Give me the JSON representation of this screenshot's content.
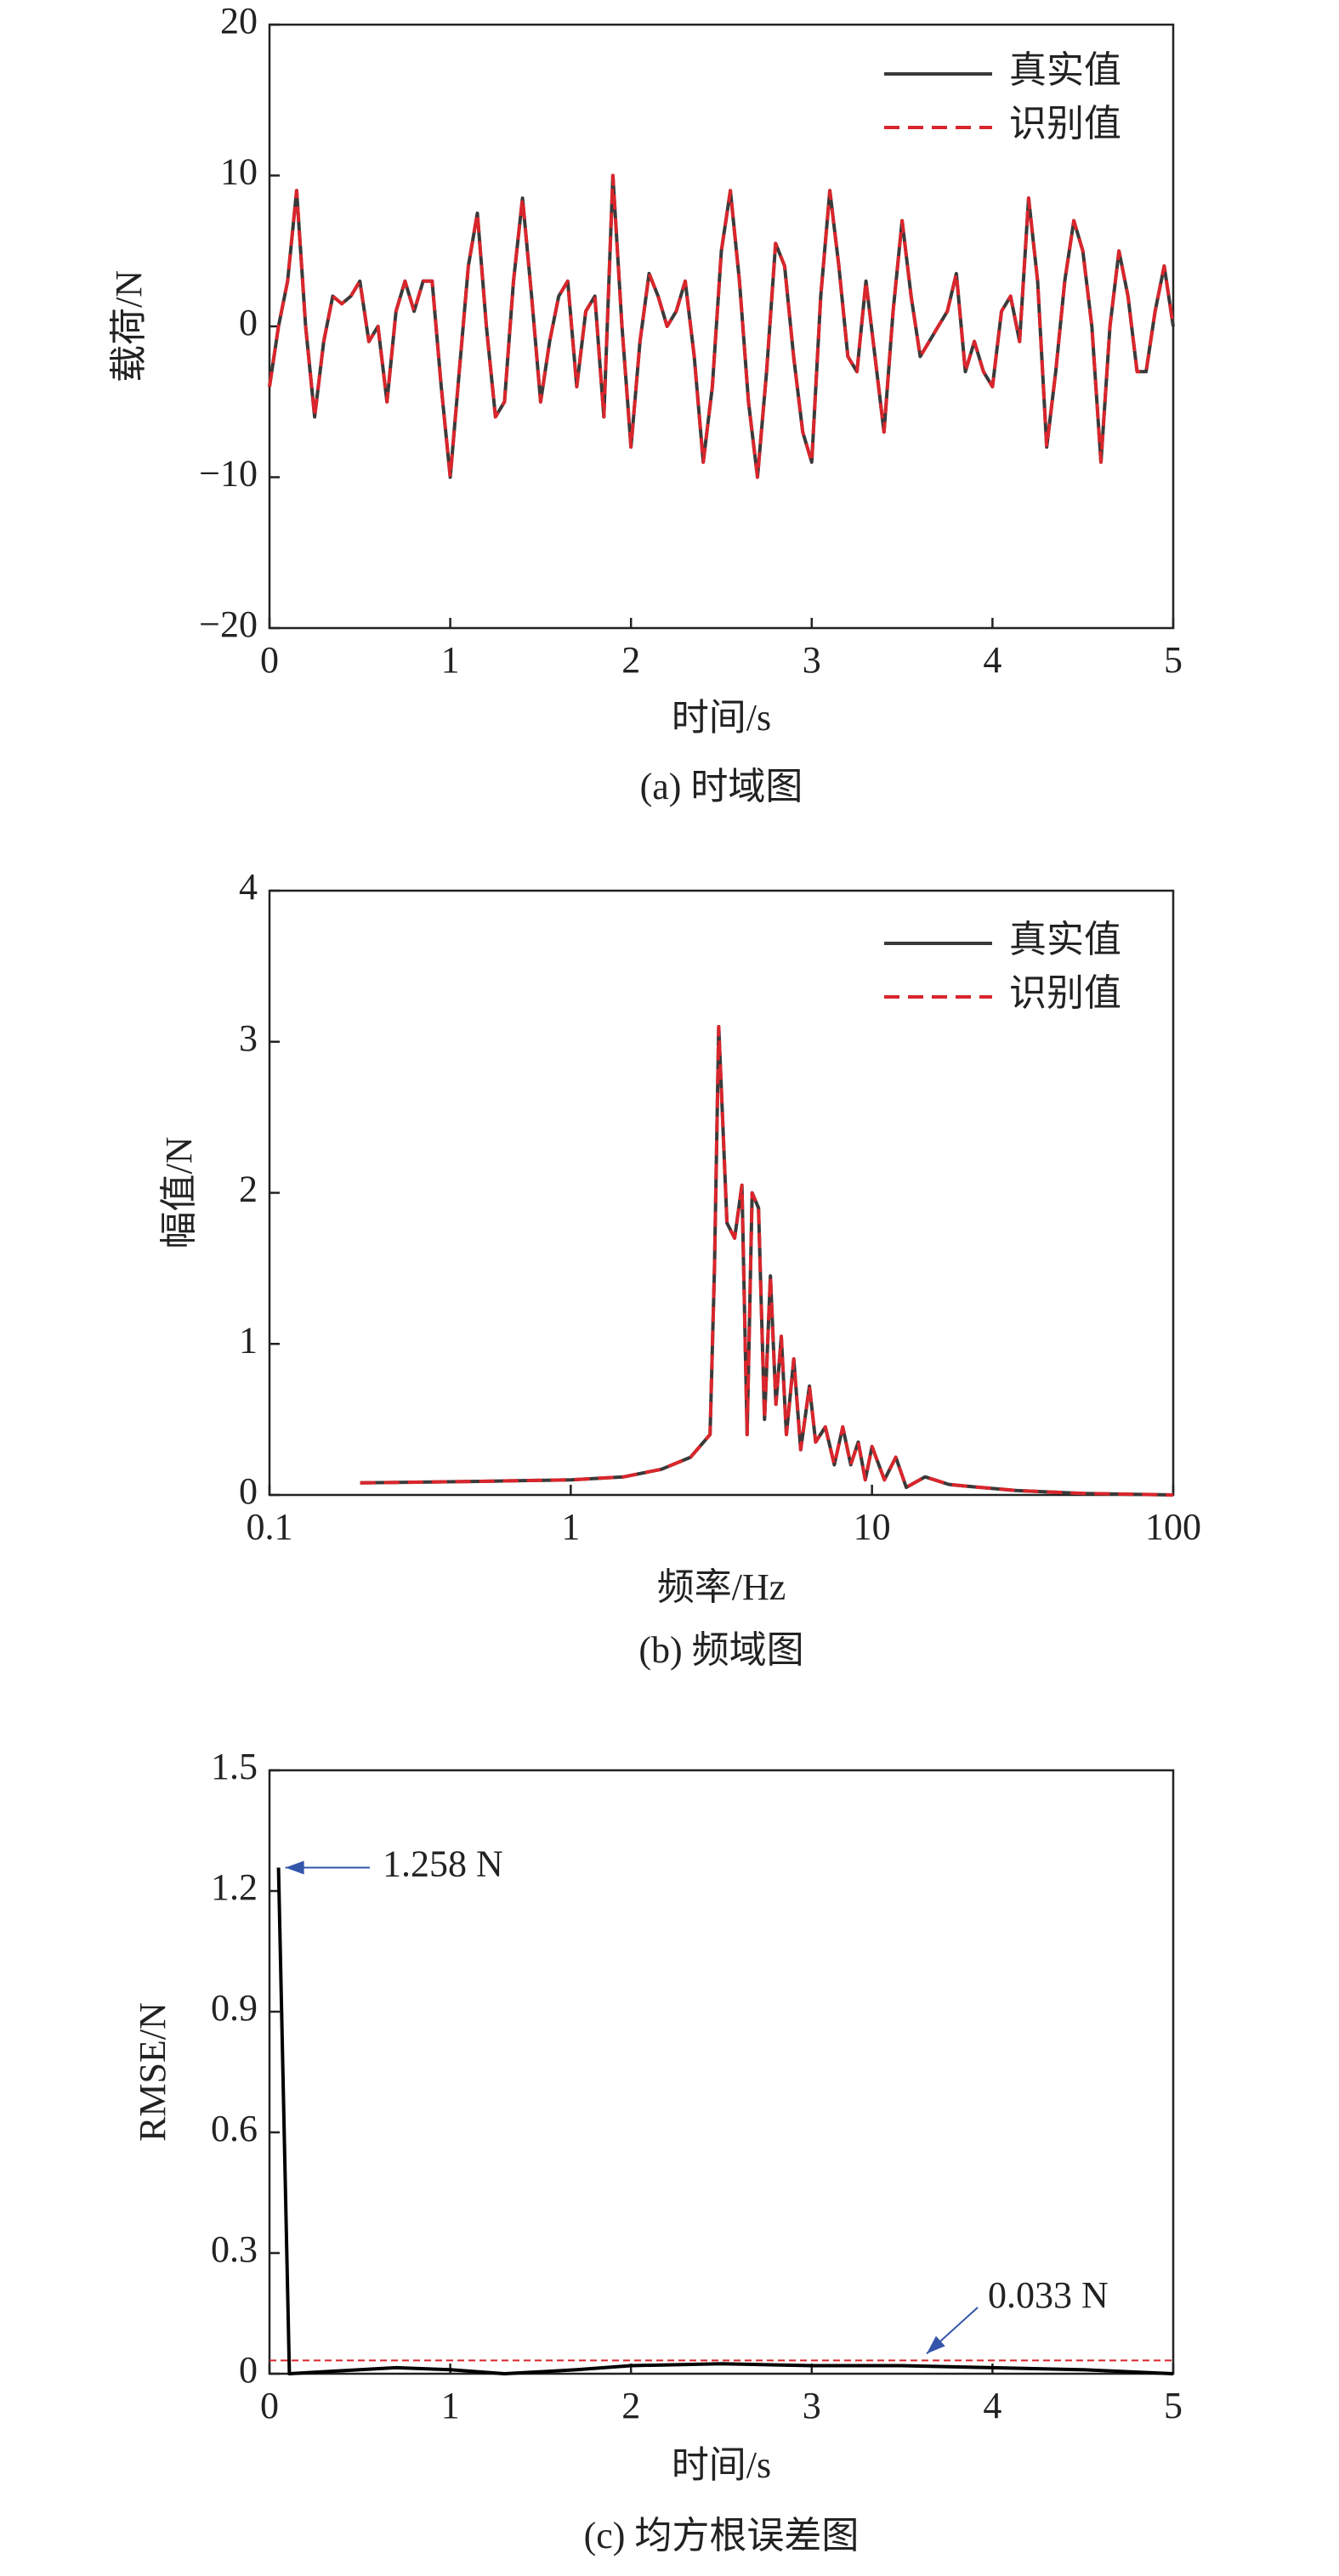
{
  "chart_data": [
    {
      "type": "line",
      "caption": "(a) 时域图",
      "xlabel": "时间/s",
      "ylabel": "载荷/N",
      "x": [
        0,
        0.05,
        0.1,
        0.15,
        0.2,
        0.25,
        0.3,
        0.35,
        0.4,
        0.45,
        0.5,
        0.55,
        0.6,
        0.65,
        0.7,
        0.75,
        0.8,
        0.85,
        0.9,
        0.95,
        1,
        1.05,
        1.1,
        1.15,
        1.2,
        1.25,
        1.3,
        1.35,
        1.4,
        1.45,
        1.5,
        1.55,
        1.6,
        1.65,
        1.7,
        1.75,
        1.8,
        1.85,
        1.9,
        1.95,
        2,
        2.05,
        2.1,
        2.15,
        2.2,
        2.25,
        2.3,
        2.35,
        2.4,
        2.45,
        2.5,
        2.55,
        2.6,
        2.65,
        2.7,
        2.75,
        2.8,
        2.85,
        2.9,
        2.95,
        3,
        3.05,
        3.1,
        3.15,
        3.2,
        3.25,
        3.3,
        3.35,
        3.4,
        3.45,
        3.5,
        3.55,
        3.6,
        3.65,
        3.7,
        3.75,
        3.8,
        3.85,
        3.9,
        3.95,
        4,
        4.05,
        4.1,
        4.15,
        4.2,
        4.25,
        4.3,
        4.35,
        4.4,
        4.45,
        4.5,
        4.55,
        4.6,
        4.65,
        4.7,
        4.75,
        4.8,
        4.85,
        4.9,
        4.95,
        5
      ],
      "series": [
        {
          "name": "真实值",
          "color": "#3a3a3a",
          "values": [
            -4,
            0,
            3,
            9,
            0,
            -6,
            -1,
            2,
            1.5,
            2,
            3,
            -1,
            0,
            -5,
            1,
            3,
            1,
            3,
            3,
            -4,
            -10,
            -3,
            4,
            7.5,
            0,
            -6,
            -5,
            3,
            8.5,
            2,
            -5,
            -1,
            2,
            3,
            -4,
            1,
            2,
            -6,
            10,
            0,
            -8,
            -1,
            3.5,
            2,
            0,
            1,
            3,
            -2,
            -9,
            -4,
            5,
            9,
            3,
            -5,
            -10,
            -3,
            5.5,
            4,
            -2,
            -7,
            -9,
            2,
            9,
            4,
            -2,
            -3,
            3,
            -2,
            -7,
            1,
            7,
            2,
            -2,
            -1,
            0,
            1,
            3.5,
            -3,
            -1,
            -3,
            -4,
            1,
            2,
            -1,
            8.5,
            3,
            -8,
            -3,
            3,
            7,
            5,
            0,
            -9,
            0,
            5,
            2,
            -3,
            -3,
            1,
            4,
            0
          ]
        },
        {
          "name": "识别值",
          "color": "#d9262c",
          "dashed": true,
          "values": [
            -4,
            0,
            3,
            9,
            0,
            -6,
            -1,
            2,
            1.5,
            2,
            3,
            -1,
            0,
            -5,
            1,
            3,
            1,
            3,
            3,
            -4,
            -10,
            -3,
            4,
            7.5,
            0,
            -6,
            -5,
            3,
            8.5,
            2,
            -5,
            -1,
            2,
            3,
            -4,
            1,
            2,
            -6,
            10,
            0,
            -8,
            -1,
            3.5,
            2,
            0,
            1,
            3,
            -2,
            -9,
            -4,
            5,
            9,
            3,
            -5,
            -10,
            -3,
            5.5,
            4,
            -2,
            -7,
            -9,
            2,
            9,
            4,
            -2,
            -3,
            3,
            -2,
            -7,
            1,
            7,
            2,
            -2,
            -1,
            0,
            1,
            3.5,
            -3,
            -1,
            -3,
            -4,
            1,
            2,
            -1,
            8.5,
            3,
            -8,
            -3,
            3,
            7,
            5,
            0,
            -9,
            0,
            5,
            2,
            -3,
            -3,
            1,
            4,
            0
          ]
        }
      ],
      "xlim": [
        0,
        5
      ],
      "xticks": [
        0,
        1,
        2,
        3,
        4,
        5
      ],
      "ylim": [
        -20,
        20
      ],
      "yticks": [
        {
          "value": -20,
          "label": "−20"
        },
        {
          "value": -10,
          "label": "−10"
        },
        0,
        10,
        20
      ],
      "legend": "upper right"
    },
    {
      "type": "line",
      "caption": "(b) 频域图",
      "xlabel": "频率/Hz",
      "ylabel": "幅值/N",
      "xscale": "log",
      "x": [
        0.2,
        0.5,
        1,
        1.5,
        2,
        2.5,
        2.9,
        3.0,
        3.1,
        3.3,
        3.5,
        3.7,
        3.85,
        4.0,
        4.2,
        4.4,
        4.6,
        4.8,
        5.0,
        5.2,
        5.5,
        5.8,
        6.2,
        6.5,
        7,
        7.5,
        8,
        8.5,
        9,
        9.5,
        10,
        11,
        12,
        13,
        15,
        18,
        20,
        30,
        50,
        100
      ],
      "series": [
        {
          "name": "真实值",
          "color": "#3a3a3a",
          "values": [
            0.08,
            0.09,
            0.1,
            0.12,
            0.17,
            0.25,
            0.4,
            1.5,
            3.1,
            1.8,
            1.7,
            2.05,
            0.4,
            2.0,
            1.9,
            0.5,
            1.45,
            0.6,
            1.05,
            0.4,
            0.9,
            0.3,
            0.72,
            0.35,
            0.45,
            0.2,
            0.45,
            0.2,
            0.35,
            0.1,
            0.32,
            0.1,
            0.25,
            0.05,
            0.12,
            0.07,
            0.06,
            0.03,
            0.01,
            0
          ]
        },
        {
          "name": "识别值",
          "color": "#d9262c",
          "dashed": true,
          "values": [
            0.08,
            0.09,
            0.1,
            0.12,
            0.17,
            0.25,
            0.4,
            1.5,
            3.1,
            1.8,
            1.7,
            2.05,
            0.4,
            2.0,
            1.9,
            0.5,
            1.45,
            0.6,
            1.05,
            0.4,
            0.9,
            0.3,
            0.72,
            0.35,
            0.45,
            0.2,
            0.45,
            0.2,
            0.35,
            0.1,
            0.32,
            0.1,
            0.25,
            0.05,
            0.12,
            0.07,
            0.06,
            0.03,
            0.01,
            0
          ]
        }
      ],
      "xlim": [
        0.1,
        100
      ],
      "xticks": [
        0.1,
        1,
        10,
        100
      ],
      "ylim": [
        0,
        4
      ],
      "yticks": [
        0,
        1,
        2,
        3,
        4
      ],
      "legend": "upper right"
    },
    {
      "type": "line",
      "caption": "(c) 均方根误差图",
      "xlabel": "时间/s",
      "ylabel": "RMSE/N",
      "x": [
        0.05,
        0.11,
        0.3,
        0.7,
        1.0,
        1.3,
        1.7,
        2.0,
        2.5,
        3.0,
        3.5,
        4.0,
        4.5,
        5
      ],
      "series": [
        {
          "color": "#000000",
          "values": [
            1.258,
            0,
            0.005,
            0.015,
            0.01,
            0,
            0.01,
            0.02,
            0.025,
            0.02,
            0.02,
            0.015,
            0.01,
            0
          ]
        }
      ],
      "mean_line": 0.033,
      "mean_color": "#d9262c",
      "annotations": [
        "1.258 N",
        "0.033 N"
      ],
      "xlim": [
        0,
        5
      ],
      "xticks": [
        0,
        1,
        2,
        3,
        4,
        5
      ],
      "ylim": [
        0,
        1.5
      ],
      "yticks": [
        0,
        0.3,
        0.6,
        0.9,
        1.2,
        1.5
      ]
    }
  ]
}
